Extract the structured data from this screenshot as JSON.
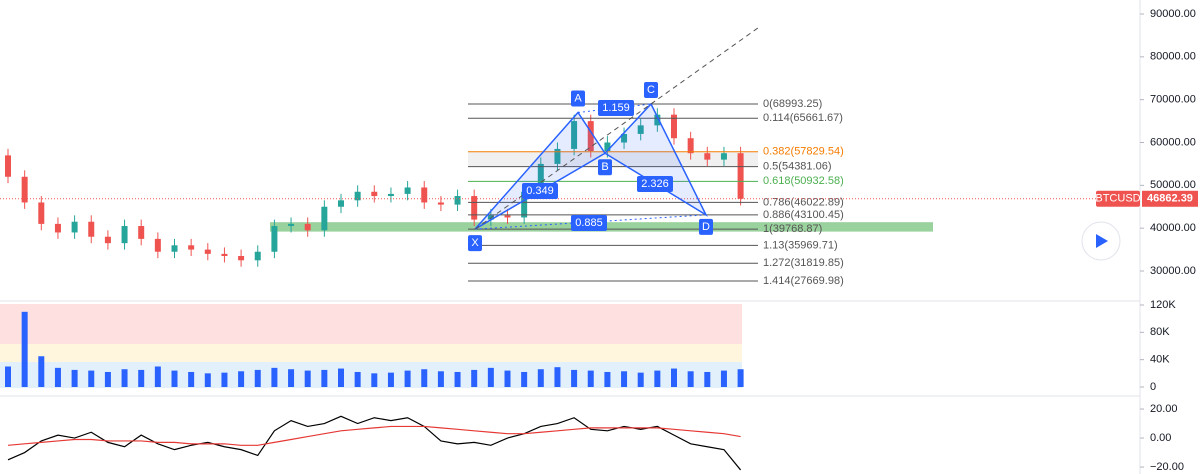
{
  "chart_data": [
    {
      "type": "candlestick",
      "symbol": "BTCUSD",
      "last_price": 46862.39,
      "categories": [
        null,
        null,
        null,
        null,
        null,
        null,
        null,
        null,
        null,
        null,
        null,
        null,
        null,
        null,
        null,
        null,
        null,
        null,
        null,
        null,
        null,
        null,
        null,
        null,
        null,
        null,
        null,
        null,
        null,
        null,
        null,
        null,
        null,
        null,
        null,
        null,
        null,
        null,
        null,
        null,
        null,
        null,
        null,
        null,
        null
      ],
      "open": [
        57000,
        52000,
        46000,
        41000,
        39000,
        41500,
        38000,
        36500,
        40500,
        37500,
        34500,
        36000,
        35000,
        34000,
        33500,
        32500,
        34500,
        40500,
        41000,
        39500,
        45000,
        46500,
        48500,
        47500,
        48000,
        49500,
        46000,
        45500,
        47500,
        42000,
        43000,
        42500,
        48500,
        55000,
        58500,
        65000,
        58000,
        60000,
        62000,
        64000,
        66500,
        61000,
        57500,
        56000,
        57500
      ],
      "high": [
        58500,
        53500,
        47500,
        42500,
        43000,
        43000,
        39500,
        42000,
        42000,
        39000,
        37500,
        37500,
        36500,
        35500,
        35000,
        36000,
        42000,
        42500,
        42500,
        46500,
        48000,
        50000,
        50000,
        49500,
        51000,
        51000,
        47500,
        49000,
        49000,
        44500,
        44500,
        50000,
        56500,
        60000,
        66500,
        66500,
        61500,
        63500,
        65500,
        68000,
        68000,
        62500,
        59000,
        59000,
        59000
      ],
      "low": [
        50500,
        44500,
        39500,
        37500,
        37500,
        36500,
        35000,
        35000,
        36000,
        33000,
        33000,
        33500,
        32500,
        32000,
        31000,
        31000,
        33000,
        39000,
        38000,
        38000,
        43500,
        45000,
        46000,
        46000,
        46500,
        44500,
        44000,
        44000,
        40500,
        40500,
        41000,
        41000,
        47000,
        53500,
        57000,
        56500,
        56500,
        58500,
        60500,
        62500,
        59500,
        56000,
        54500,
        54500,
        45300
      ],
      "close": [
        52000,
        46000,
        41000,
        39000,
        41500,
        38000,
        36500,
        40500,
        37500,
        34500,
        36000,
        35000,
        34000,
        33500,
        32500,
        34500,
        40500,
        41000,
        39500,
        45000,
        46500,
        48500,
        47500,
        48000,
        49500,
        46000,
        45500,
        47500,
        42000,
        43000,
        42500,
        48500,
        55000,
        58500,
        65000,
        58000,
        60000,
        62000,
        64000,
        66500,
        61000,
        57500,
        56000,
        57500,
        46862.39
      ],
      "up_color": "#26a69a",
      "down_color": "#ef5350",
      "ylim": [
        23230,
        93270
      ],
      "yticks": [
        {
          "value": 30000,
          "label": "30000.00"
        },
        {
          "value": 40000,
          "label": "40000.00"
        },
        {
          "value": 50000,
          "label": "50000.00"
        },
        {
          "value": 60000,
          "label": "60000.00"
        },
        {
          "value": 70000,
          "label": "70000.00"
        },
        {
          "value": 80000,
          "label": "80000.00"
        },
        {
          "value": 90000,
          "label": "90000.00"
        }
      ],
      "zone": [
        39200,
        41400
      ],
      "fib_levels": [
        {
          "value": 68993.25,
          "label": "0(68993.25)",
          "color": "#555555"
        },
        {
          "value": 65661.67,
          "label": "0.114(65661.67)",
          "color": "#555555"
        },
        {
          "value": 57829.54,
          "label": "0.382(57829.54)",
          "color": "#f57c00"
        },
        {
          "value": 54381.06,
          "label": "0.5(54381.06)",
          "color": "#555555"
        },
        {
          "value": 50932.58,
          "label": "0.618(50932.58)",
          "color": "#4caf50"
        },
        {
          "value": 46022.89,
          "label": "0.786(46022.89)",
          "color": "#555555"
        },
        {
          "value": 43100.45,
          "label": "0.886(43100.45)",
          "color": "#555555"
        },
        {
          "value": 39768.87,
          "label": "1(39768.87)",
          "color": "#555555"
        },
        {
          "value": 35969.71,
          "label": "1.13(35969.71)",
          "color": "#555555"
        },
        {
          "value": 31819.85,
          "label": "1.272(31819.85)",
          "color": "#555555"
        },
        {
          "value": 27669.98,
          "label": "1.414(27669.98)",
          "color": "#555555"
        }
      ],
      "pattern": {
        "points": [
          {
            "label": "X",
            "value": 39768.87
          },
          {
            "label": "A",
            "value": 67000
          },
          {
            "label": "B",
            "value": 57500
          },
          {
            "label": "C",
            "value": 68993.25
          },
          {
            "label": "D",
            "value": 43100.45
          }
        ],
        "ratios": [
          "1.159",
          "0.349",
          "2.326",
          "0.885"
        ]
      }
    },
    {
      "type": "bar",
      "values": [
        30000,
        110000,
        45000,
        28000,
        25000,
        24000,
        22000,
        26000,
        25000,
        30000,
        24000,
        22000,
        20000,
        21000,
        23000,
        25000,
        28000,
        26000,
        24000,
        25000,
        27000,
        22000,
        20000,
        21000,
        24000,
        26000,
        23000,
        22000,
        25000,
        28000,
        24000,
        22000,
        26000,
        29000,
        25000,
        24000,
        22000,
        23000,
        21000,
        24000,
        27000,
        23000,
        22000,
        24000,
        26000
      ],
      "color": "#2962ff",
      "ylim": [
        -11700,
        122900
      ],
      "yticks": [
        {
          "value": 0,
          "label": "0"
        },
        {
          "value": 40000,
          "label": "40K"
        },
        {
          "value": 80000,
          "label": "80K"
        },
        {
          "value": 120000,
          "label": "120K"
        }
      ]
    },
    {
      "type": "line",
      "series": [
        {
          "color": "#000000",
          "values": [
            -15,
            -10,
            -2,
            2,
            0,
            4,
            -3,
            -6,
            2,
            -4,
            -8,
            -5,
            -3,
            -6,
            -8,
            -12,
            5,
            12,
            8,
            10,
            15,
            10,
            14,
            12,
            14,
            8,
            -2,
            -4,
            -3,
            -5,
            0,
            3,
            8,
            10,
            14,
            6,
            5,
            8,
            6,
            8,
            2,
            -4,
            -6,
            -8,
            -22
          ]
        },
        {
          "color": "#e53935",
          "values": [
            -5,
            -4,
            -3,
            -2,
            -1,
            -1,
            -2,
            -2,
            -2,
            -3,
            -3,
            -4,
            -4,
            -4,
            -5,
            -5,
            -3,
            -1,
            1,
            3,
            5,
            6,
            7,
            8,
            8,
            8,
            7,
            6,
            5,
            4,
            3,
            3,
            4,
            5,
            6,
            7,
            7,
            7,
            7,
            7,
            6,
            5,
            4,
            3,
            1
          ]
        }
      ],
      "ylim": [
        -24.8,
        28.3
      ],
      "yticks": [
        {
          "value": -20,
          "label": "−20.00"
        },
        {
          "value": 0,
          "label": "0.00"
        },
        {
          "value": 20,
          "label": "20.00"
        }
      ]
    }
  ]
}
